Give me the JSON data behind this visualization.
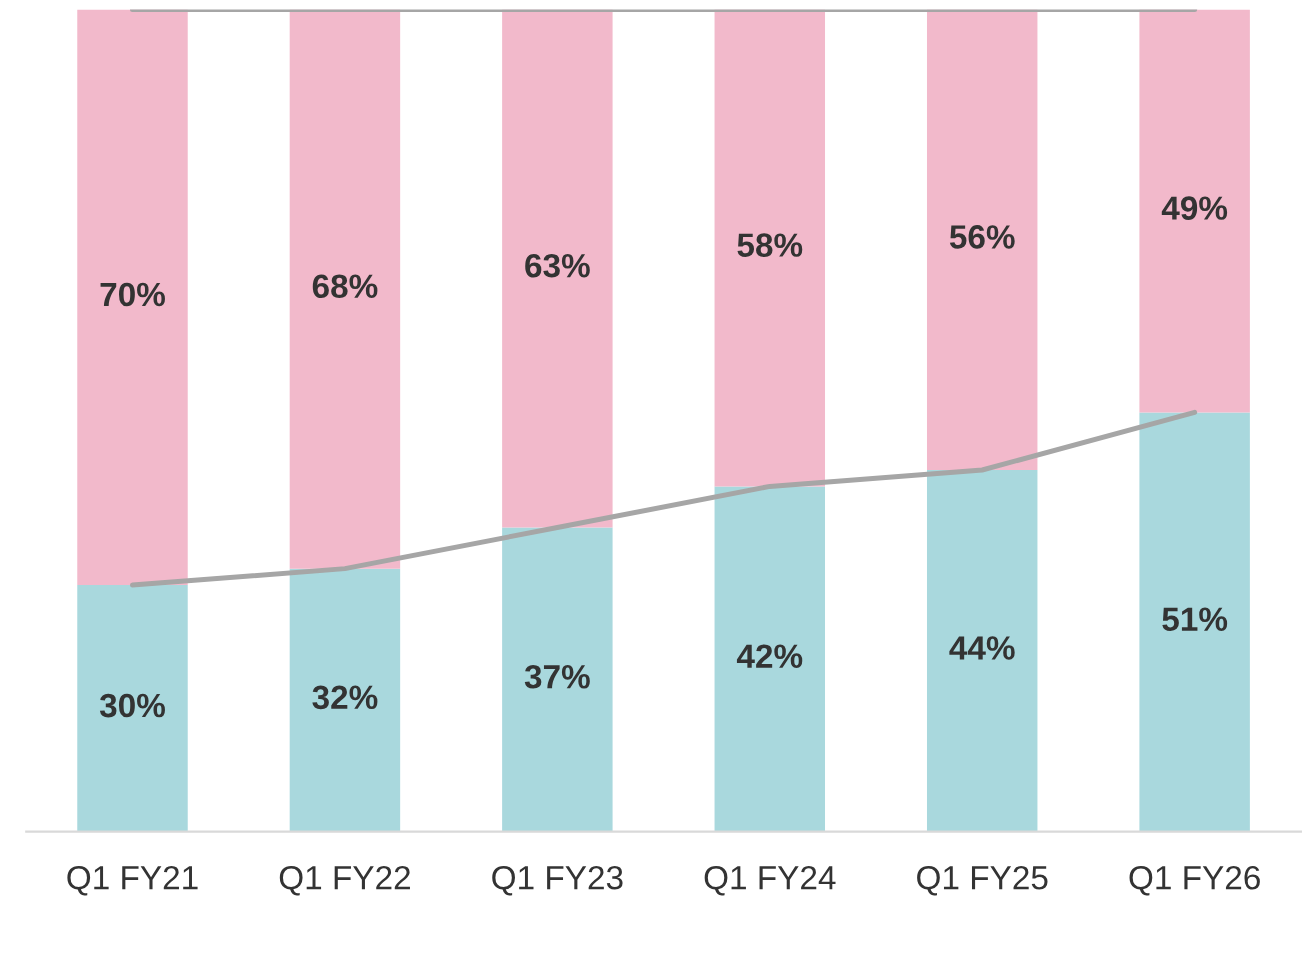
{
  "chart_data": {
    "type": "bar",
    "stacked": true,
    "categories": [
      "Q1 FY21",
      "Q1 FY22",
      "Q1 FY23",
      "Q1 FY24",
      "Q1 FY25",
      "Q1 FY26"
    ],
    "series": [
      {
        "color": "#a9d8dd",
        "values": [
          30,
          32,
          37,
          42,
          44,
          51
        ],
        "value_labels": [
          "30%",
          "32%",
          "37%",
          "42%",
          "44%",
          "51%"
        ]
      },
      {
        "color": "#f2b9cb",
        "values": [
          70,
          68,
          63,
          58,
          56,
          49
        ],
        "value_labels": [
          "70%",
          "68%",
          "63%",
          "58%",
          "56%",
          "49%"
        ]
      },
      {
        "type": "line",
        "color": "#a6a6a6",
        "values": [
          30,
          32,
          37,
          42,
          44,
          51
        ]
      },
      {
        "type": "line",
        "color": "#a6a6a6",
        "values": [
          100,
          100,
          100,
          100,
          100,
          100
        ]
      }
    ],
    "ylim": [
      0,
      100
    ],
    "tick_labels": "x",
    "grid": false,
    "legend": false
  }
}
